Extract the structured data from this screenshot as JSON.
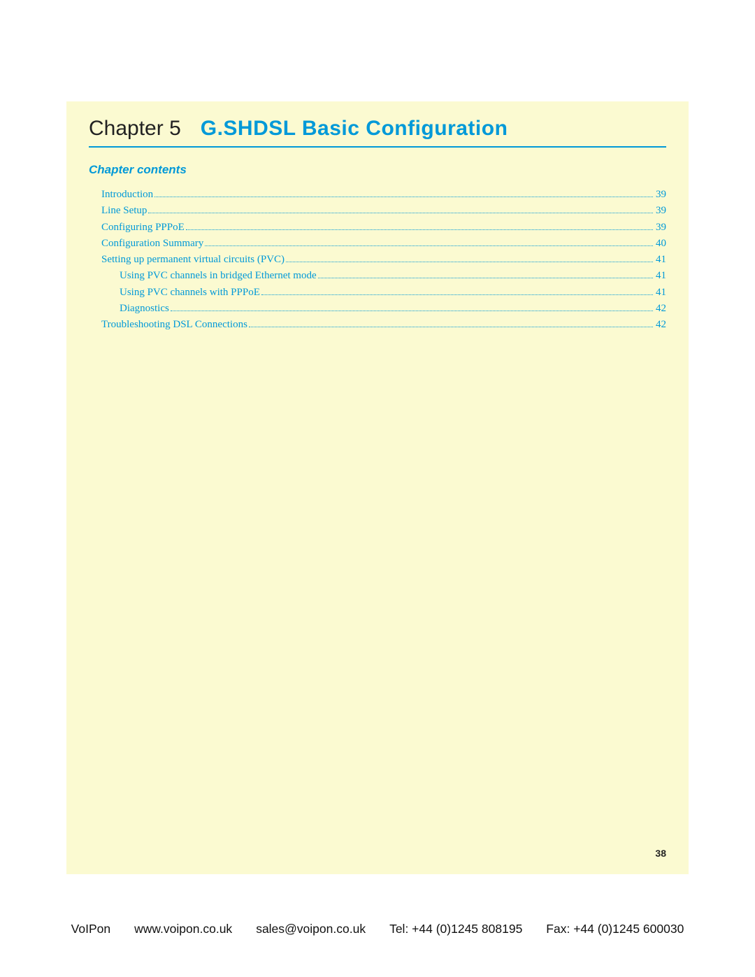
{
  "colors": {
    "page_bg": "#fbfad1",
    "accent": "#0099d8",
    "text_dark": "#222222",
    "footer_text": "#111111",
    "outer_bg": "#ffffff"
  },
  "typography": {
    "chapter_label_fontsize": 30,
    "chapter_title_fontsize": 30,
    "contents_heading_fontsize": 17,
    "toc_fontsize": 15,
    "page_number_fontsize": 14,
    "footer_fontsize": 17.5
  },
  "chapter": {
    "label": "Chapter 5",
    "title": "G.SHDSL Basic Configuration"
  },
  "contents_heading": "Chapter contents",
  "toc": [
    {
      "label": "Introduction",
      "page": "39",
      "level": 0
    },
    {
      "label": "Line Setup",
      "page": "39",
      "level": 0
    },
    {
      "label": "Configuring PPPoE",
      "page": "39",
      "level": 0
    },
    {
      "label": "Configuration Summary",
      "page": "40",
      "level": 0
    },
    {
      "label": "Setting up permanent virtual circuits (PVC)",
      "page": "41",
      "level": 0
    },
    {
      "label": "Using PVC channels in bridged Ethernet mode",
      "page": "41",
      "level": 1
    },
    {
      "label": "Using PVC channels with PPPoE",
      "page": "41",
      "level": 1
    },
    {
      "label": "Diagnostics",
      "page": "42",
      "level": 1
    },
    {
      "label": "Troubleshooting DSL Connections",
      "page": "42",
      "level": 0
    }
  ],
  "page_number": "38",
  "footer": {
    "company": "VoIPon",
    "url": "www.voipon.co.uk",
    "email": "sales@voipon.co.uk",
    "tel": "Tel: +44 (0)1245 808195",
    "fax": "Fax: +44 (0)1245 600030"
  }
}
